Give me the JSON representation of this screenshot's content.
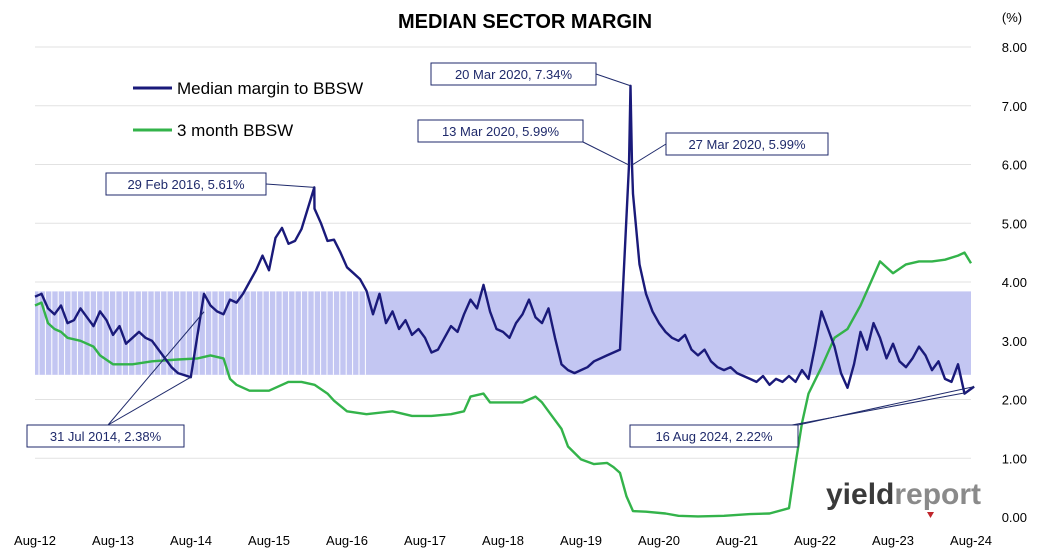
{
  "chart_data": {
    "type": "line",
    "title": "MEDIAN SECTOR MARGIN",
    "yunit": "(%)",
    "ylim": [
      0,
      8
    ],
    "yticks": [
      "0.00",
      "1.00",
      "2.00",
      "3.00",
      "4.00",
      "5.00",
      "6.00",
      "7.00",
      "8.00"
    ],
    "xticks": [
      "Aug-12",
      "Aug-13",
      "Aug-14",
      "Aug-15",
      "Aug-16",
      "Aug-17",
      "Aug-18",
      "Aug-19",
      "Aug-20",
      "Aug-21",
      "Aug-22",
      "Aug-23",
      "Aug-24"
    ],
    "xlim": [
      "2012-08",
      "2024-08"
    ],
    "grid": "horizontal",
    "legend_position": "top-left",
    "band": {
      "from": "2012-08",
      "to": "2024-08",
      "low": 2.42,
      "high": 3.84
    },
    "series": [
      {
        "name": "Median margin to BBSW",
        "color": "#1a1a7a",
        "points": [
          [
            "2012-08",
            3.75
          ],
          [
            "2012-09",
            3.8
          ],
          [
            "2012-10",
            3.55
          ],
          [
            "2012-11",
            3.45
          ],
          [
            "2012-12",
            3.6
          ],
          [
            "2013-01",
            3.3
          ],
          [
            "2013-02",
            3.35
          ],
          [
            "2013-03",
            3.55
          ],
          [
            "2013-04",
            3.4
          ],
          [
            "2013-05",
            3.25
          ],
          [
            "2013-06",
            3.5
          ],
          [
            "2013-07",
            3.35
          ],
          [
            "2013-08",
            3.1
          ],
          [
            "2013-09",
            3.25
          ],
          [
            "2013-10",
            2.95
          ],
          [
            "2013-11",
            3.05
          ],
          [
            "2013-12",
            3.15
          ],
          [
            "2014-01",
            3.05
          ],
          [
            "2014-02",
            3.0
          ],
          [
            "2014-03",
            2.85
          ],
          [
            "2014-04",
            2.7
          ],
          [
            "2014-05",
            2.55
          ],
          [
            "2014-06",
            2.45
          ],
          [
            "2014-07-31",
            2.38
          ],
          [
            "2014-09",
            3.1
          ],
          [
            "2014-10",
            3.8
          ],
          [
            "2014-11",
            3.6
          ],
          [
            "2014-12",
            3.5
          ],
          [
            "2015-01",
            3.45
          ],
          [
            "2015-02",
            3.7
          ],
          [
            "2015-03",
            3.65
          ],
          [
            "2015-04",
            3.8
          ],
          [
            "2015-05",
            4.0
          ],
          [
            "2015-06",
            4.2
          ],
          [
            "2015-07",
            4.45
          ],
          [
            "2015-08",
            4.2
          ],
          [
            "2015-09",
            4.75
          ],
          [
            "2015-10",
            4.92
          ],
          [
            "2015-11",
            4.65
          ],
          [
            "2015-12",
            4.7
          ],
          [
            "2016-01",
            4.9
          ],
          [
            "2016-02-29",
            5.61
          ],
          [
            "2016-03",
            5.25
          ],
          [
            "2016-04",
            5.0
          ],
          [
            "2016-05",
            4.7
          ],
          [
            "2016-06",
            4.72
          ],
          [
            "2016-07",
            4.5
          ],
          [
            "2016-08",
            4.25
          ],
          [
            "2016-09",
            4.15
          ],
          [
            "2016-10",
            4.05
          ],
          [
            "2016-11",
            3.85
          ],
          [
            "2016-12",
            3.45
          ],
          [
            "2017-01",
            3.8
          ],
          [
            "2017-02",
            3.3
          ],
          [
            "2017-03",
            3.5
          ],
          [
            "2017-04",
            3.2
          ],
          [
            "2017-05",
            3.35
          ],
          [
            "2017-06",
            3.1
          ],
          [
            "2017-07",
            3.2
          ],
          [
            "2017-08",
            3.05
          ],
          [
            "2017-09",
            2.8
          ],
          [
            "2017-10",
            2.85
          ],
          [
            "2017-11",
            3.05
          ],
          [
            "2017-12",
            3.25
          ],
          [
            "2018-01",
            3.15
          ],
          [
            "2018-02",
            3.45
          ],
          [
            "2018-03",
            3.7
          ],
          [
            "2018-04",
            3.55
          ],
          [
            "2018-05",
            3.95
          ],
          [
            "2018-06",
            3.5
          ],
          [
            "2018-07",
            3.2
          ],
          [
            "2018-08",
            3.15
          ],
          [
            "2018-09",
            3.05
          ],
          [
            "2018-10",
            3.3
          ],
          [
            "2018-11",
            3.45
          ],
          [
            "2018-12",
            3.7
          ],
          [
            "2019-01",
            3.4
          ],
          [
            "2019-02",
            3.3
          ],
          [
            "2019-03",
            3.55
          ],
          [
            "2019-04",
            3.05
          ],
          [
            "2019-05",
            2.6
          ],
          [
            "2019-06",
            2.5
          ],
          [
            "2019-07",
            2.45
          ],
          [
            "2019-08",
            2.5
          ],
          [
            "2019-09",
            2.55
          ],
          [
            "2019-10",
            2.65
          ],
          [
            "2019-11",
            2.7
          ],
          [
            "2019-12",
            2.75
          ],
          [
            "2020-01",
            2.8
          ],
          [
            "2020-02",
            2.85
          ],
          [
            "2020-03-13",
            5.99
          ],
          [
            "2020-03-20",
            7.34
          ],
          [
            "2020-03-27",
            5.99
          ],
          [
            "2020-04",
            5.5
          ],
          [
            "2020-05",
            4.3
          ],
          [
            "2020-06",
            3.8
          ],
          [
            "2020-07",
            3.5
          ],
          [
            "2020-08",
            3.3
          ],
          [
            "2020-09",
            3.15
          ],
          [
            "2020-10",
            3.05
          ],
          [
            "2020-11",
            3.0
          ],
          [
            "2020-12",
            3.1
          ],
          [
            "2021-01",
            2.85
          ],
          [
            "2021-02",
            2.75
          ],
          [
            "2021-03",
            2.85
          ],
          [
            "2021-04",
            2.65
          ],
          [
            "2021-05",
            2.55
          ],
          [
            "2021-06",
            2.5
          ],
          [
            "2021-07",
            2.55
          ],
          [
            "2021-08",
            2.45
          ],
          [
            "2021-09",
            2.4
          ],
          [
            "2021-10",
            2.35
          ],
          [
            "2021-11",
            2.3
          ],
          [
            "2021-12",
            2.4
          ],
          [
            "2022-01",
            2.25
          ],
          [
            "2022-02",
            2.35
          ],
          [
            "2022-03",
            2.3
          ],
          [
            "2022-04",
            2.4
          ],
          [
            "2022-05",
            2.3
          ],
          [
            "2022-06",
            2.5
          ],
          [
            "2022-07",
            2.35
          ],
          [
            "2022-08",
            2.9
          ],
          [
            "2022-09",
            3.5
          ],
          [
            "2022-10",
            3.2
          ],
          [
            "2022-11",
            2.9
          ],
          [
            "2022-12",
            2.45
          ],
          [
            "2023-01",
            2.2
          ],
          [
            "2023-02",
            2.6
          ],
          [
            "2023-03",
            3.15
          ],
          [
            "2023-04",
            2.85
          ],
          [
            "2023-05",
            3.3
          ],
          [
            "2023-06",
            3.05
          ],
          [
            "2023-07",
            2.7
          ],
          [
            "2023-08",
            2.95
          ],
          [
            "2023-09",
            2.65
          ],
          [
            "2023-10",
            2.55
          ],
          [
            "2023-11",
            2.7
          ],
          [
            "2023-12",
            2.9
          ],
          [
            "2024-01",
            2.75
          ],
          [
            "2024-02",
            2.5
          ],
          [
            "2024-03",
            2.65
          ],
          [
            "2024-04",
            2.35
          ],
          [
            "2024-05",
            2.3
          ],
          [
            "2024-06",
            2.6
          ],
          [
            "2024-07",
            2.1
          ],
          [
            "2024-08-16",
            2.22
          ]
        ]
      },
      {
        "name": "3 month BBSW",
        "color": "#33b34a",
        "points": [
          [
            "2012-08",
            3.6
          ],
          [
            "2012-09",
            3.65
          ],
          [
            "2012-10",
            3.3
          ],
          [
            "2012-11",
            3.2
          ],
          [
            "2012-12",
            3.15
          ],
          [
            "2013-01",
            3.05
          ],
          [
            "2013-03",
            3.0
          ],
          [
            "2013-05",
            2.9
          ],
          [
            "2013-06",
            2.75
          ],
          [
            "2013-08",
            2.6
          ],
          [
            "2013-11",
            2.6
          ],
          [
            "2014-02",
            2.65
          ],
          [
            "2014-06",
            2.68
          ],
          [
            "2014-09",
            2.7
          ],
          [
            "2014-11",
            2.75
          ],
          [
            "2015-01",
            2.7
          ],
          [
            "2015-02",
            2.35
          ],
          [
            "2015-03",
            2.25
          ],
          [
            "2015-05",
            2.15
          ],
          [
            "2015-08",
            2.15
          ],
          [
            "2015-11",
            2.3
          ],
          [
            "2016-01",
            2.3
          ],
          [
            "2016-03",
            2.25
          ],
          [
            "2016-05",
            2.1
          ],
          [
            "2016-06",
            1.98
          ],
          [
            "2016-08",
            1.8
          ],
          [
            "2016-11",
            1.75
          ],
          [
            "2017-03",
            1.8
          ],
          [
            "2017-06",
            1.72
          ],
          [
            "2017-09",
            1.72
          ],
          [
            "2017-12",
            1.75
          ],
          [
            "2018-02",
            1.8
          ],
          [
            "2018-03",
            2.05
          ],
          [
            "2018-05",
            2.1
          ],
          [
            "2018-06",
            1.95
          ],
          [
            "2018-09",
            1.95
          ],
          [
            "2018-11",
            1.95
          ],
          [
            "2019-01",
            2.05
          ],
          [
            "2019-02",
            1.95
          ],
          [
            "2019-03",
            1.8
          ],
          [
            "2019-05",
            1.5
          ],
          [
            "2019-06",
            1.2
          ],
          [
            "2019-08",
            0.98
          ],
          [
            "2019-10",
            0.9
          ],
          [
            "2019-12",
            0.92
          ],
          [
            "2020-01",
            0.85
          ],
          [
            "2020-02",
            0.75
          ],
          [
            "2020-03",
            0.35
          ],
          [
            "2020-04",
            0.1
          ],
          [
            "2020-06",
            0.09
          ],
          [
            "2020-09",
            0.06
          ],
          [
            "2020-11",
            0.02
          ],
          [
            "2021-02",
            0.01
          ],
          [
            "2021-06",
            0.02
          ],
          [
            "2021-10",
            0.05
          ],
          [
            "2022-01",
            0.06
          ],
          [
            "2022-04",
            0.15
          ],
          [
            "2022-05",
            0.9
          ],
          [
            "2022-06",
            1.6
          ],
          [
            "2022-07",
            2.1
          ],
          [
            "2022-09",
            2.55
          ],
          [
            "2022-11",
            3.05
          ],
          [
            "2023-01",
            3.2
          ],
          [
            "2023-03",
            3.6
          ],
          [
            "2023-05",
            4.1
          ],
          [
            "2023-06",
            4.35
          ],
          [
            "2023-08",
            4.15
          ],
          [
            "2023-10",
            4.3
          ],
          [
            "2023-12",
            4.35
          ],
          [
            "2024-02",
            4.35
          ],
          [
            "2024-04",
            4.38
          ],
          [
            "2024-06",
            4.45
          ],
          [
            "2024-07",
            4.5
          ],
          [
            "2024-08",
            4.32
          ]
        ]
      }
    ],
    "annotations": [
      {
        "text": "20 Mar 2020, 7.34%",
        "point": [
          "2020-03-20",
          7.34
        ]
      },
      {
        "text": "13 Mar 2020, 5.99%",
        "point": [
          "2020-03-13",
          5.99
        ]
      },
      {
        "text": "27 Mar 2020, 5.99%",
        "point": [
          "2020-03-27",
          5.99
        ]
      },
      {
        "text": "29 Feb 2016, 5.61%",
        "point": [
          "2016-02-29",
          5.61
        ]
      },
      {
        "text": "31 Jul 2014, 2.38%",
        "point": [
          "2014-07-31",
          2.38
        ]
      },
      {
        "text": "16 Aug 2024, 2.22%",
        "point": [
          "2024-08-16",
          2.22
        ]
      }
    ]
  },
  "watermark": {
    "part1": "yield",
    "part2": "report"
  }
}
